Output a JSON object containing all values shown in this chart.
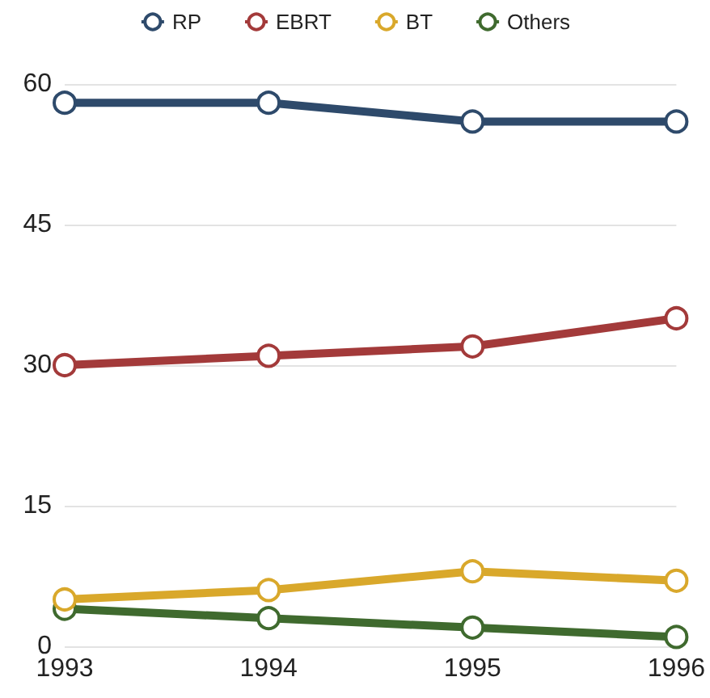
{
  "chart_data": {
    "type": "line",
    "categories": [
      "1993",
      "1994",
      "1995",
      "1996"
    ],
    "series": [
      {
        "name": "RP",
        "color": "#2e4a6b",
        "values": [
          58,
          58,
          56,
          56
        ]
      },
      {
        "name": "EBRT",
        "color": "#a33a3a",
        "values": [
          30,
          31,
          32,
          35
        ]
      },
      {
        "name": "BT",
        "color": "#d9a82b",
        "values": [
          5,
          6,
          8,
          7
        ]
      },
      {
        "name": "Others",
        "color": "#3f6a2e",
        "values": [
          4,
          3,
          2,
          1
        ]
      }
    ],
    "ylim": [
      0,
      60
    ],
    "yticks": [
      0,
      15,
      30,
      45,
      60
    ],
    "grid": "y",
    "legend": "top",
    "marker": "circle",
    "line_style": "solid"
  }
}
